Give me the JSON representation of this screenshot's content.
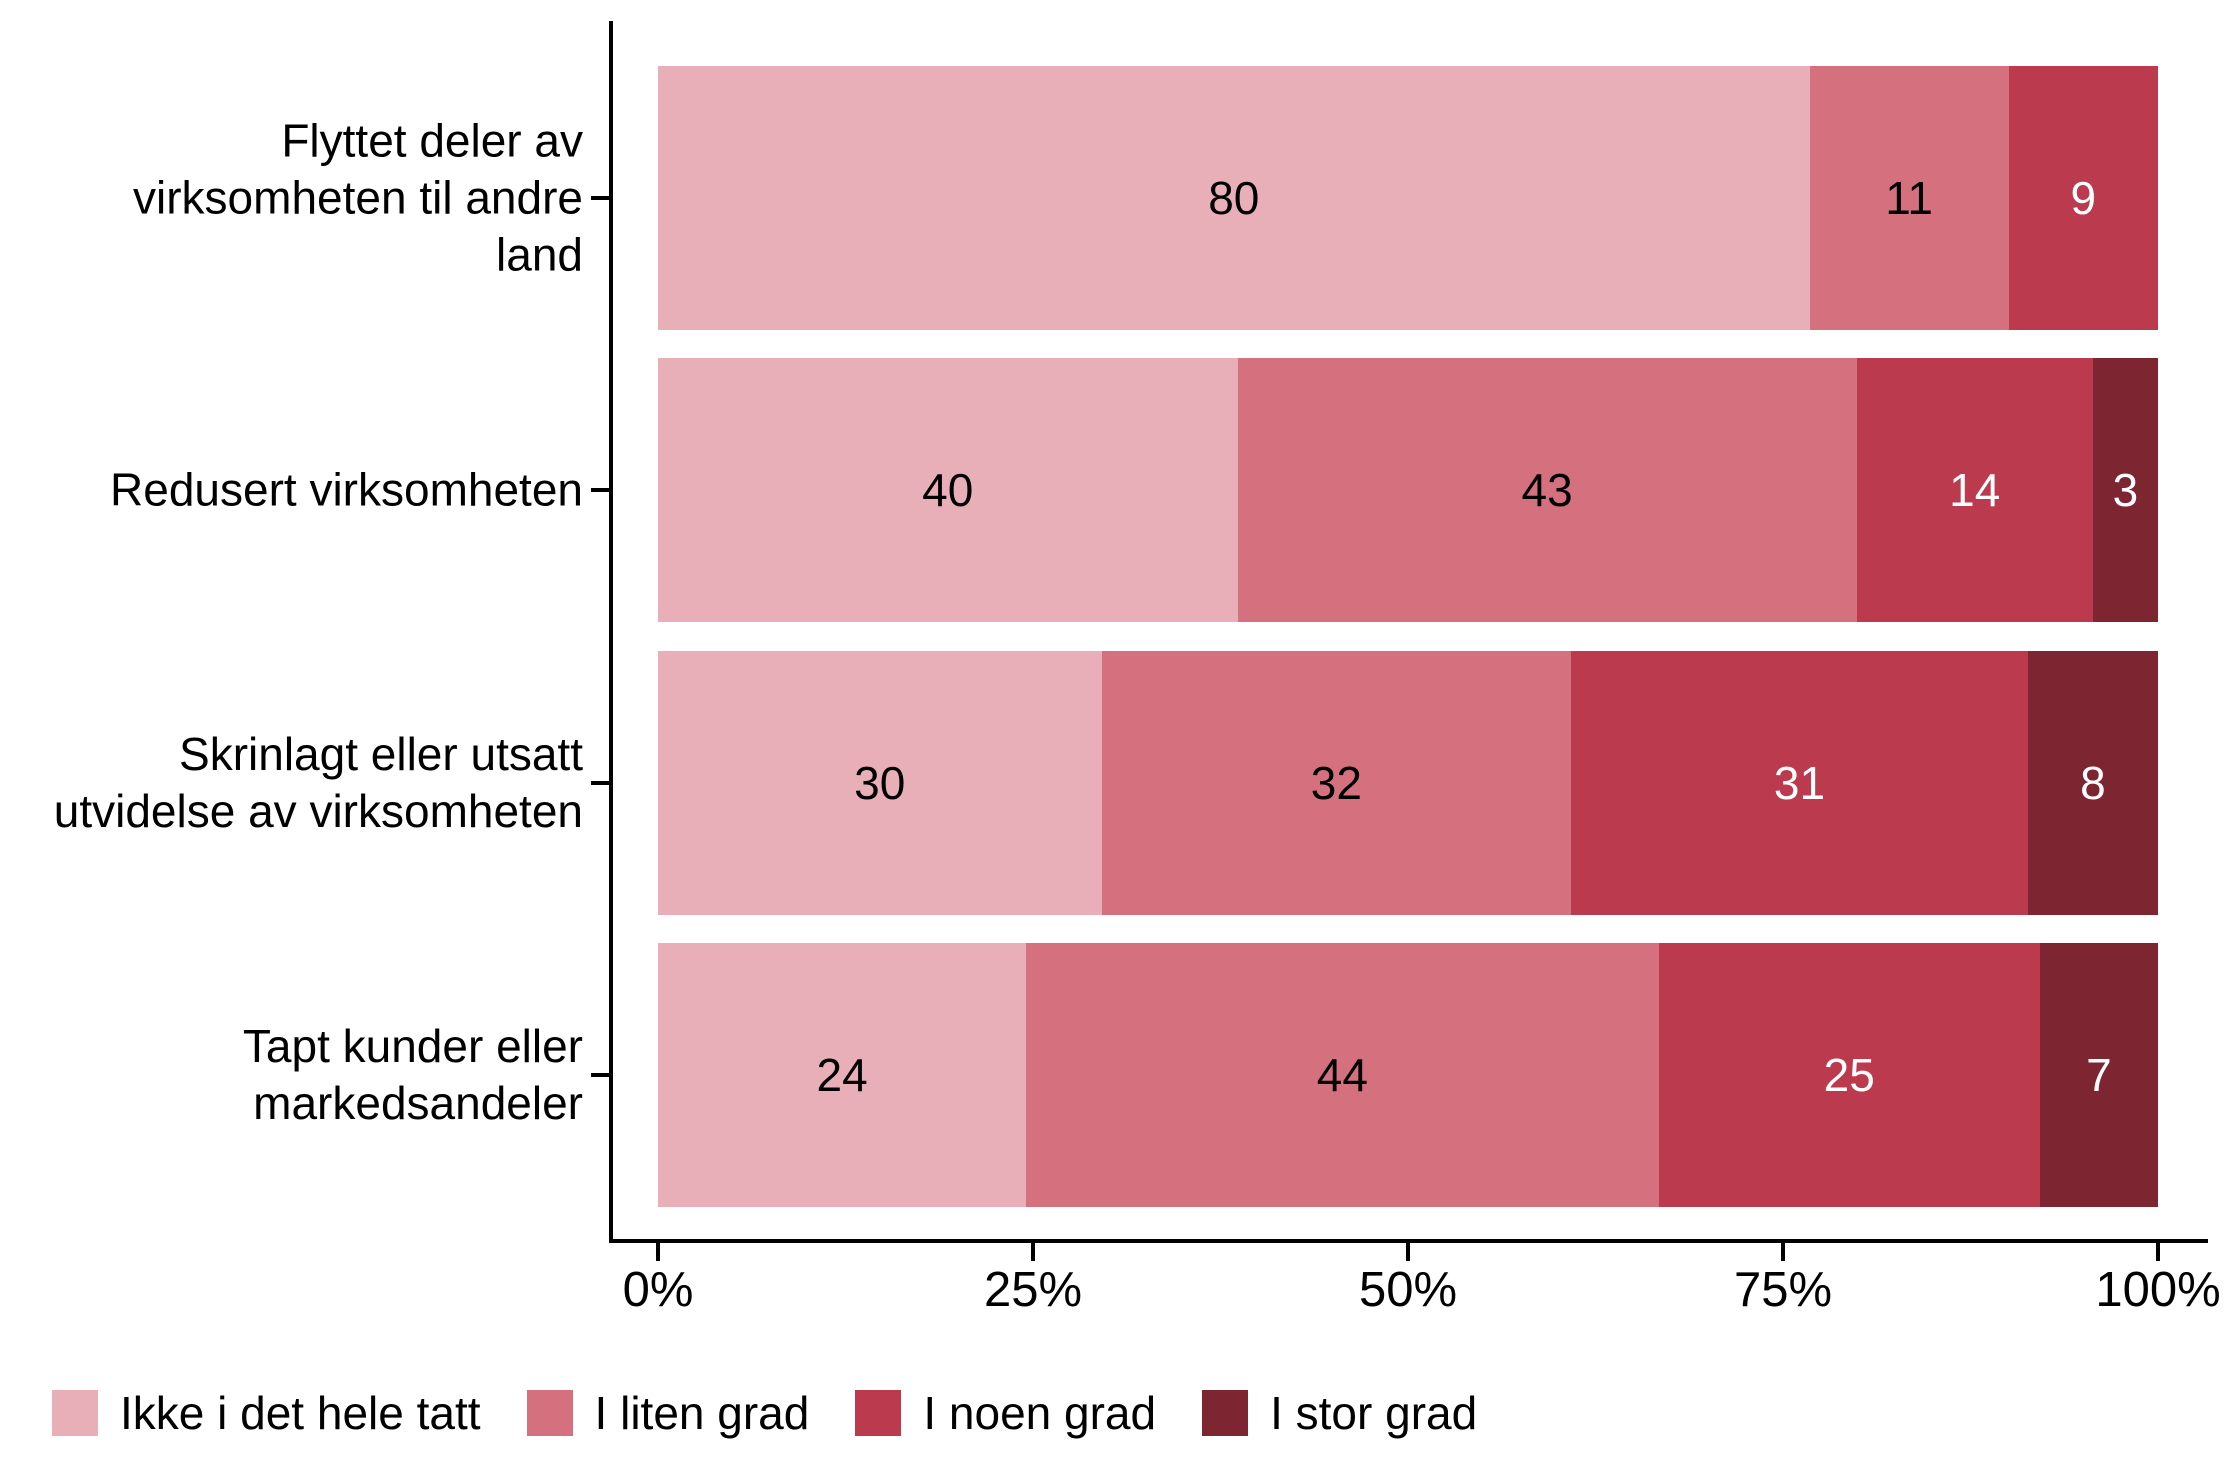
{
  "chart_data": {
    "type": "bar",
    "orientation": "horizontal",
    "stacked": true,
    "unit": "percent",
    "title": "",
    "xlabel": "",
    "ylabel": "",
    "grid": false,
    "legend_position": "bottom-left",
    "axis_color": "#000000",
    "background_color": "#ffffff",
    "categories": [
      "Flyttet deler av virksomheten til andre land",
      "Redusert virksomheten",
      "Skrinlagt eller utsatt utvidelse av virksomheten",
      "Tapt kunder eller markedsandeler"
    ],
    "category_label_lines": [
      [
        "Flyttet deler av",
        "virksomheten til andre",
        "land"
      ],
      [
        "Redusert virksomheten"
      ],
      [
        "Skrinlagt eller utsatt",
        "utvidelse av virksomheten"
      ],
      [
        "Tapt kunder eller",
        "markedsandeler"
      ]
    ],
    "series": [
      {
        "name": "Ikke i det hele tatt",
        "color": "#E9AFB8",
        "label_color": "#000000",
        "values": [
          80,
          40,
          30,
          24
        ]
      },
      {
        "name": "I liten grad",
        "color": "#D5717F",
        "label_color": "#000000",
        "values": [
          11,
          43,
          32,
          44
        ]
      },
      {
        "name": "I noen grad",
        "color": "#BB3A4E",
        "label_color": "#FFFFFF",
        "values": [
          9,
          14,
          31,
          25
        ]
      },
      {
        "name": "I stor grad",
        "color": "#7D2531",
        "label_color": "#FFFFFF",
        "values": [
          0,
          3,
          8,
          7
        ]
      }
    ],
    "x_axis": {
      "range": [
        0,
        100
      ],
      "ticks": [
        "0%",
        "25%",
        "50%",
        "75%",
        "100%"
      ],
      "tick_values": [
        0,
        25,
        50,
        75,
        100
      ]
    }
  }
}
